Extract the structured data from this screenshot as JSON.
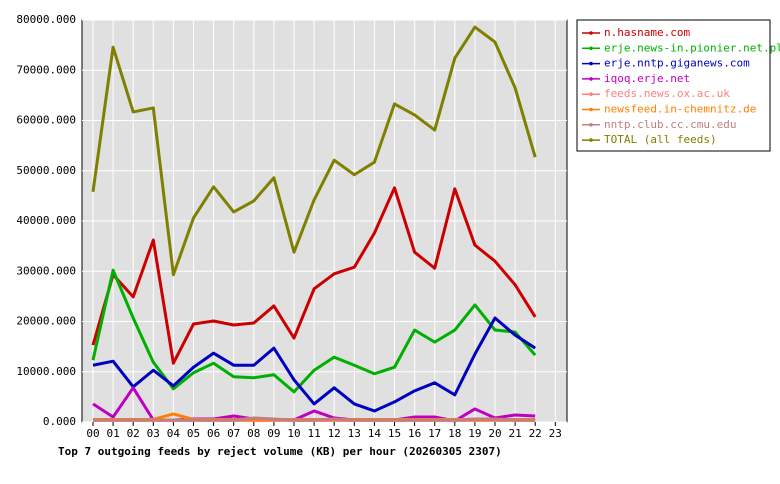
{
  "chart_data": {
    "type": "line",
    "title": "Top 7 outgoing feeds by reject volume (KB) per hour (20260305 2307)",
    "categories": [
      "00",
      "01",
      "02",
      "03",
      "04",
      "05",
      "06",
      "07",
      "08",
      "09",
      "10",
      "11",
      "12",
      "13",
      "14",
      "15",
      "16",
      "17",
      "18",
      "19",
      "20",
      "21",
      "22",
      "23"
    ],
    "ylim": [
      0,
      80000
    ],
    "yticks": [
      {
        "value": 0,
        "label": "0.000"
      },
      {
        "value": 10000,
        "label": "10000.000"
      },
      {
        "value": 20000,
        "label": "20000.000"
      },
      {
        "value": 30000,
        "label": "30000.000"
      },
      {
        "value": 40000,
        "label": "40000.000"
      },
      {
        "value": 50000,
        "label": "50000.000"
      },
      {
        "value": 60000,
        "label": "60000.000"
      },
      {
        "value": 70000,
        "label": "70000.000"
      },
      {
        "value": 80000,
        "label": "80000.000"
      }
    ],
    "grid": true,
    "legend": "right",
    "series": [
      {
        "name": "n.hasname.com",
        "color": "#cc0000",
        "values": [
          15300,
          29300,
          24900,
          36200,
          11700,
          19500,
          20100,
          19300,
          19700,
          23100,
          16700,
          26500,
          29500,
          30800,
          37600,
          46600,
          33800,
          30600,
          46400,
          35200,
          32000,
          27300,
          20900,
          null
        ]
      },
      {
        "name": "erje.news-in.pionier.net.pl",
        "color": "#00b000",
        "values": [
          12300,
          30200,
          20700,
          11900,
          6600,
          9800,
          11700,
          9000,
          8800,
          9400,
          6000,
          10300,
          12900,
          11300,
          9600,
          10900,
          18300,
          15900,
          18300,
          23300,
          18300,
          17900,
          13300,
          null
        ]
      },
      {
        "name": "erje.nntp.giganews.com",
        "color": "#0000c0",
        "values": [
          11300,
          12100,
          7000,
          10300,
          7200,
          10900,
          13700,
          11300,
          11300,
          14700,
          8400,
          3600,
          6800,
          3600,
          2200,
          4000,
          6200,
          7800,
          5400,
          13500,
          20700,
          17300,
          14700,
          null
        ]
      },
      {
        "name": "iqoq.erje.net",
        "color": "#c000c0",
        "values": [
          3600,
          1000,
          6800,
          400,
          400,
          600,
          600,
          1200,
          600,
          400,
          400,
          2200,
          800,
          400,
          400,
          400,
          1000,
          1000,
          200,
          2600,
          800,
          1400,
          1200,
          null
        ]
      },
      {
        "name": "feeds.news.ox.ac.uk",
        "color": "#ff8080",
        "values": [
          300,
          300,
          300,
          300,
          300,
          300,
          300,
          300,
          300,
          300,
          300,
          300,
          300,
          300,
          300,
          300,
          300,
          300,
          300,
          300,
          300,
          300,
          300,
          null
        ]
      },
      {
        "name": "newsfeed.in-chemnitz.de",
        "color": "#ff8000",
        "values": [
          500,
          500,
          500,
          500,
          1600,
          500,
          500,
          500,
          500,
          500,
          500,
          500,
          500,
          500,
          500,
          500,
          500,
          500,
          500,
          500,
          500,
          500,
          500,
          null
        ]
      },
      {
        "name": "nntp.club.cc.cmu.edu",
        "color": "#c08080",
        "values": [
          400,
          400,
          400,
          400,
          400,
          400,
          400,
          400,
          800,
          600,
          400,
          400,
          600,
          400,
          400,
          400,
          400,
          400,
          400,
          600,
          600,
          400,
          400,
          null
        ]
      },
      {
        "name": "TOTAL (all feeds)",
        "color": "#808000",
        "values": [
          45800,
          74600,
          61700,
          62500,
          29300,
          40600,
          46800,
          41800,
          44000,
          48600,
          33800,
          44200,
          52100,
          49200,
          51700,
          63300,
          61100,
          58100,
          72400,
          78600,
          75600,
          66500,
          52700,
          null
        ]
      }
    ]
  }
}
